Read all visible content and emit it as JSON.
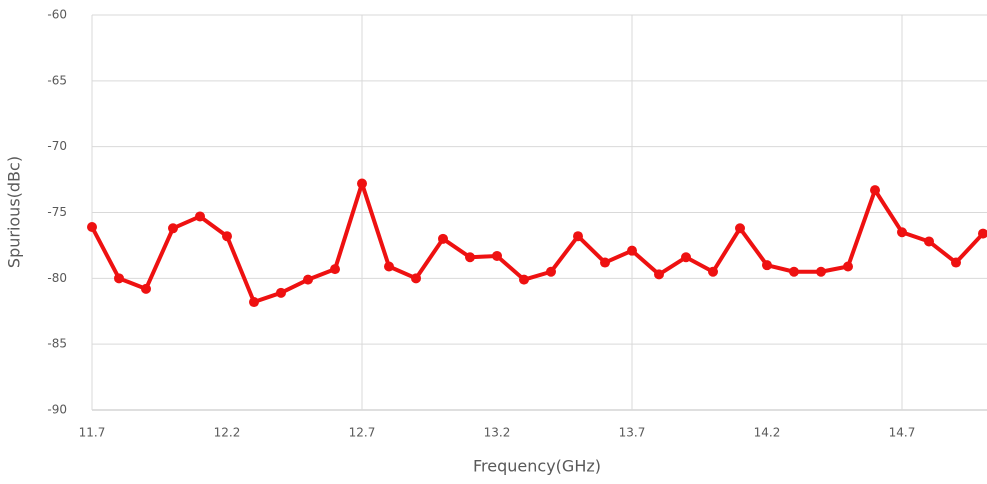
{
  "chart_data": {
    "type": "line",
    "x_label": "Frequency(GHz)",
    "y_label": "Spurious(dBc)",
    "x": [
      11.7,
      11.8,
      11.9,
      12.0,
      12.1,
      12.2,
      12.3,
      12.4,
      12.5,
      12.6,
      12.7,
      12.8,
      12.9,
      13.0,
      13.1,
      13.2,
      13.3,
      13.4,
      13.5,
      13.6,
      13.7,
      13.8,
      13.9,
      14.0,
      14.1,
      14.2,
      14.3,
      14.4,
      14.5,
      14.6,
      14.7,
      14.8,
      14.9,
      15.0
    ],
    "series": [
      {
        "name": "Spurious",
        "color": "#ee1111",
        "values": [
          -76.1,
          -80,
          -80.8,
          -76.2,
          -75.3,
          -76.8,
          -81.8,
          -81.1,
          -80.1,
          -79.3,
          -72.8,
          -79.1,
          -80,
          -77,
          -78.4,
          -78.3,
          -80.1,
          -79.5,
          -76.8,
          -78.8,
          -77.9,
          -79.7,
          -78.4,
          -79.5,
          -76.2,
          -79,
          -79.5,
          -79.5,
          -79.1,
          -73.3,
          -76.5,
          -77.2,
          -78.8,
          -76.6
        ]
      }
    ],
    "xlim": [
      11.7,
      15.0
    ],
    "xticks": [
      11.7,
      12.2,
      12.7,
      13.2,
      13.7,
      14.2,
      14.7
    ],
    "ylim": [
      -90,
      -60
    ],
    "yticks": [
      -90,
      -85,
      -80,
      -75,
      -70,
      -65,
      -60
    ],
    "grid": true
  }
}
